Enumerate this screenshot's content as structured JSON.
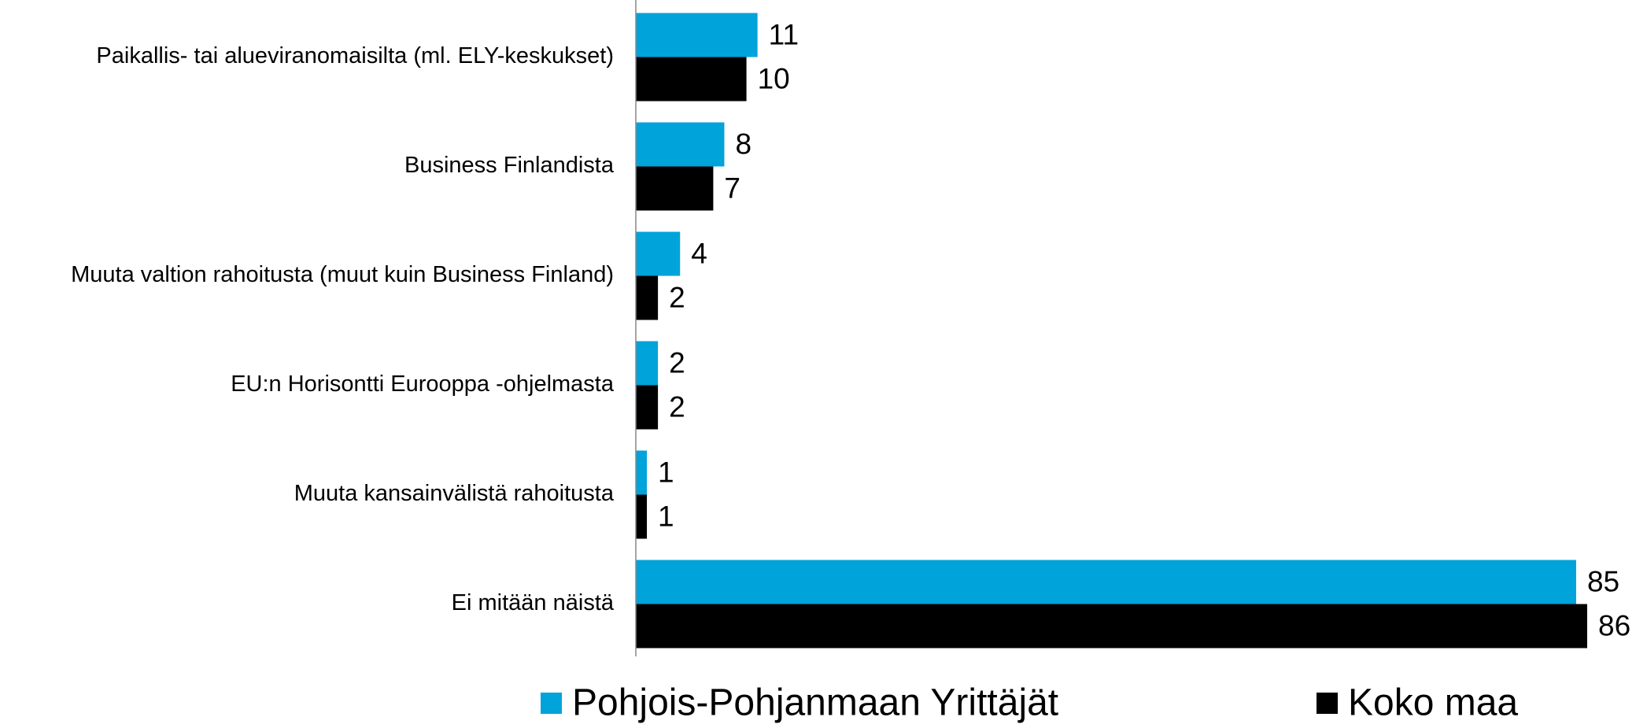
{
  "chart_data": {
    "type": "bar",
    "orientation": "horizontal",
    "categories": [
      "Paikallis- tai alueviranomaisilta (ml. ELY-keskukset)",
      "Business Finlandista",
      "Muuta valtion rahoitusta (muut kuin Business Finland)",
      "EU:n Horisontti Eurooppa -ohjelmasta",
      "Muuta kansainvälistä rahoitusta",
      "Ei mitään näistä"
    ],
    "series": [
      {
        "name": "Pohjois-Pohjanmaan Yrittäjät",
        "color": "#00a3da",
        "values": [
          11,
          8,
          4,
          2,
          1,
          85
        ]
      },
      {
        "name": "Koko maa",
        "color": "#000000",
        "values": [
          10,
          7,
          2,
          2,
          1,
          86
        ]
      }
    ]
  }
}
